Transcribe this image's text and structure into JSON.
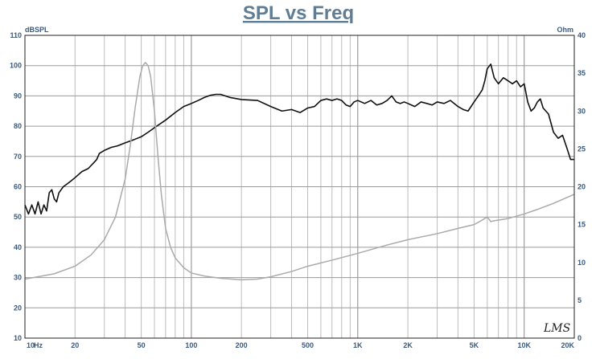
{
  "chart_data": {
    "type": "line",
    "title": "SPL vs Freq",
    "xlabel": "",
    "ylabel_left": "dBSPL",
    "ylabel_right": "Ohm",
    "x_scale": "log",
    "xlim": [
      10,
      20000
    ],
    "ylim_left": [
      10,
      110
    ],
    "ylim_right": [
      0,
      40
    ],
    "grid": true,
    "logo_text": "LMS",
    "x_tick_labels": [
      {
        "value": 10,
        "label": "10"
      },
      {
        "value": 20,
        "label": "20"
      },
      {
        "value": 50,
        "label": "50"
      },
      {
        "value": 100,
        "label": "100"
      },
      {
        "value": 200,
        "label": "200"
      },
      {
        "value": 500,
        "label": "500"
      },
      {
        "value": 1000,
        "label": "1K"
      },
      {
        "value": 2000,
        "label": "2K"
      },
      {
        "value": 5000,
        "label": "5K"
      },
      {
        "value": 10000,
        "label": "10K"
      },
      {
        "value": 20000,
        "label": "20K"
      }
    ],
    "x_unit_label": "Hz",
    "y_left_ticks": [
      "10",
      "20",
      "30",
      "40",
      "50",
      "60",
      "70",
      "80",
      "90",
      "100",
      "110"
    ],
    "y_right_ticks": [
      "0",
      "5",
      "10",
      "15",
      "20",
      "25",
      "30",
      "35",
      "40"
    ],
    "series": [
      {
        "axis": "left",
        "color": "#111111",
        "x": [
          10,
          10.5,
          11,
          11.5,
          12,
          12.5,
          13,
          13.5,
          14,
          14.5,
          15,
          15.5,
          16,
          17,
          18,
          19,
          20,
          22,
          24,
          26,
          27,
          28,
          30,
          33,
          36,
          40,
          45,
          50,
          55,
          60,
          70,
          80,
          90,
          100,
          110,
          120,
          130,
          140,
          150,
          170,
          200,
          250,
          300,
          350,
          400,
          450,
          500,
          550,
          600,
          650,
          700,
          750,
          800,
          850,
          900,
          950,
          1000,
          1100,
          1200,
          1300,
          1400,
          1500,
          1600,
          1700,
          1800,
          1900,
          2000,
          2200,
          2400,
          2600,
          2800,
          3000,
          3300,
          3600,
          4000,
          4300,
          4600,
          5000,
          5300,
          5600,
          5800,
          6000,
          6300,
          6600,
          7000,
          7500,
          8000,
          8500,
          9000,
          9500,
          10000,
          10500,
          11000,
          11500,
          12000,
          12500,
          13000,
          14000,
          15000,
          16000,
          17000,
          18000,
          19000,
          20000
        ],
        "y": [
          54,
          51,
          54,
          51,
          55,
          51,
          54,
          52,
          58,
          59,
          56,
          55,
          58,
          60,
          61,
          62,
          63,
          65,
          66,
          68,
          69,
          71,
          72,
          73,
          73.5,
          74.5,
          75.5,
          76.5,
          78,
          79.5,
          82,
          84.5,
          86.5,
          87.5,
          88.5,
          89.5,
          90.2,
          90.5,
          90.5,
          89.5,
          88.8,
          88.5,
          86.5,
          85,
          85.5,
          84.5,
          86,
          86.5,
          88.5,
          89,
          88.5,
          89,
          88.5,
          87,
          86.5,
          88,
          88.5,
          87.5,
          88.5,
          87,
          87.5,
          88.5,
          90,
          88,
          87.5,
          88,
          87.5,
          86.5,
          88,
          87.5,
          87,
          88,
          87.5,
          88.5,
          86.5,
          85.5,
          85,
          88,
          90,
          92,
          95,
          99,
          100.5,
          96,
          94,
          96,
          95,
          94,
          95,
          93,
          94,
          88,
          85,
          86,
          88,
          89,
          86,
          84,
          78,
          76,
          77,
          73,
          69,
          69
        ]
      },
      {
        "axis": "right",
        "color": "#aaaaaa",
        "x": [
          10,
          15,
          20,
          25,
          30,
          35,
          40,
          43,
          46,
          49,
          51,
          53,
          55,
          57,
          60,
          63,
          66,
          70,
          75,
          80,
          90,
          100,
          120,
          150,
          200,
          250,
          300,
          400,
          500,
          700,
          1000,
          1500,
          2000,
          3000,
          4000,
          5000,
          5500,
          6000,
          6300,
          6600,
          7000,
          8000,
          10000,
          12000,
          15000,
          20000
        ],
        "y": [
          7.8,
          8.5,
          9.5,
          11,
          13,
          16,
          21,
          25.5,
          30.5,
          34.5,
          36,
          36.4,
          36,
          34.5,
          30,
          24,
          19,
          14.5,
          12,
          10.6,
          9.3,
          8.6,
          8.2,
          7.9,
          7.7,
          7.8,
          8.1,
          8.8,
          9.5,
          10.3,
          11.2,
          12.3,
          13,
          13.8,
          14.5,
          15,
          15.5,
          16,
          15.4,
          15.5,
          15.6,
          15.8,
          16.4,
          17,
          17.8,
          19
        ]
      }
    ]
  }
}
